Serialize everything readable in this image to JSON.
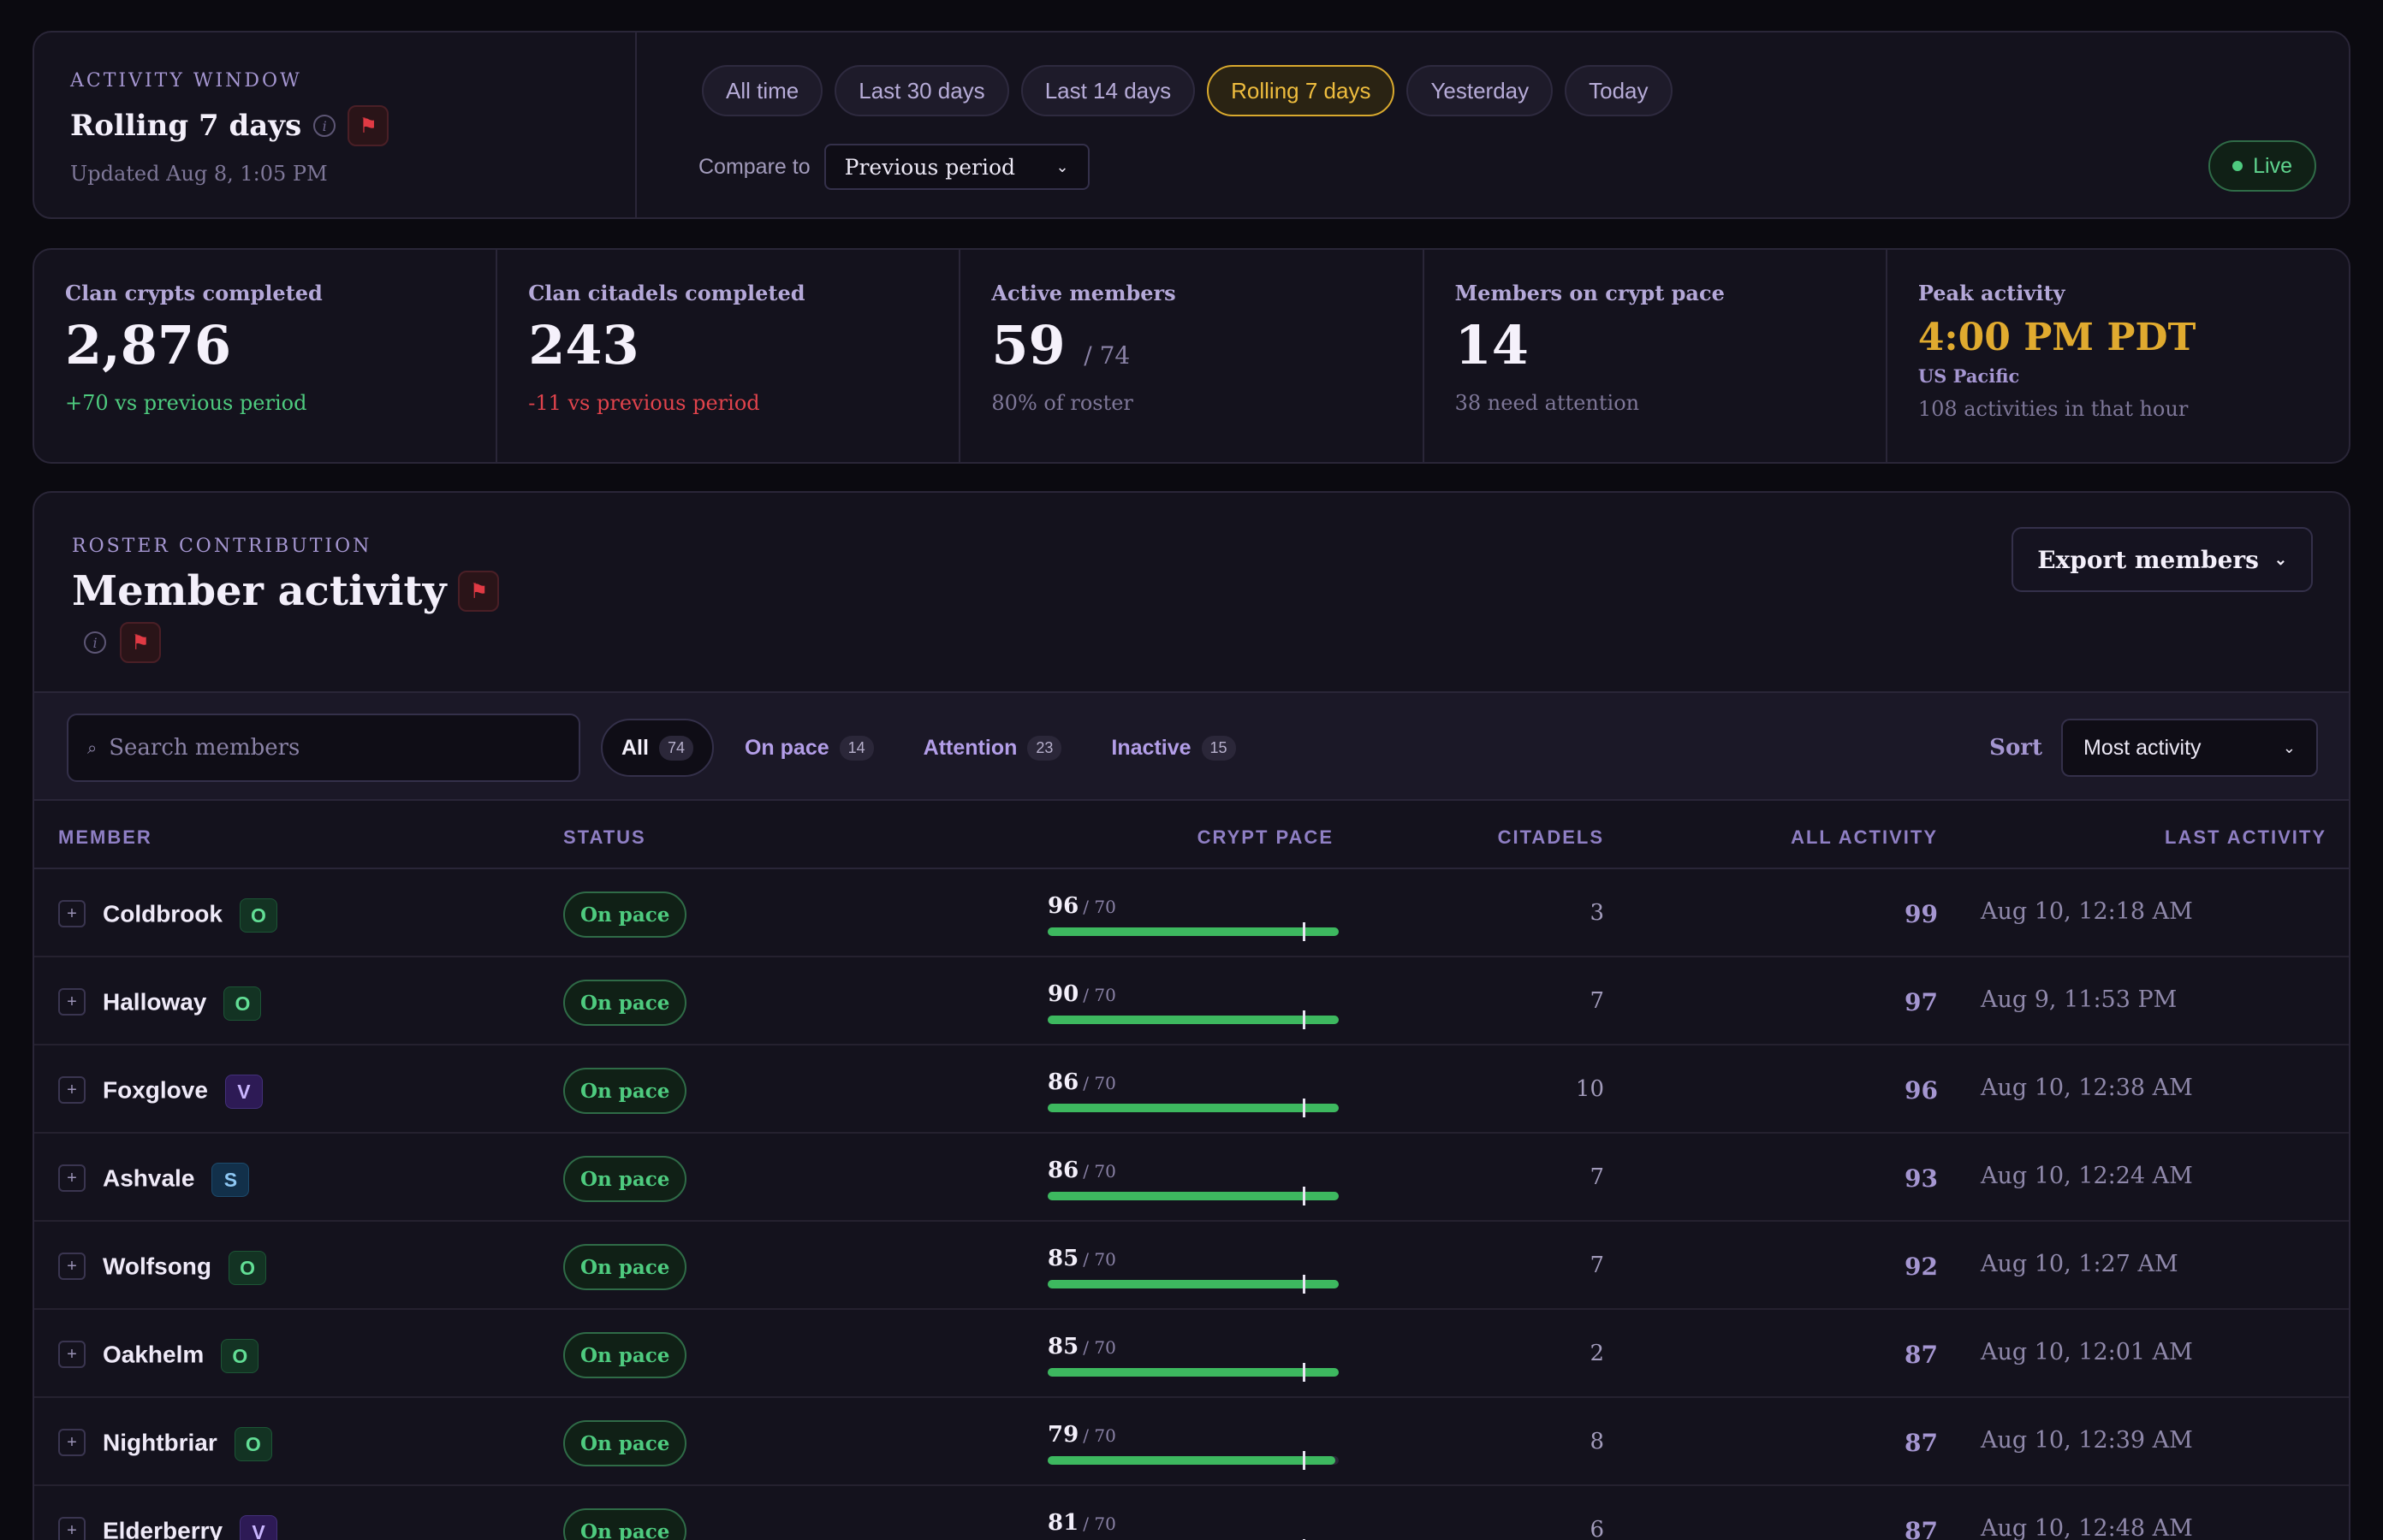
{
  "window": {
    "eyebrow": "ACTIVITY WINDOW",
    "title": "Rolling 7 days",
    "updated": "Updated Aug 8, 1:05 PM",
    "ranges": [
      "All time",
      "Last 30 days",
      "Last 14 days",
      "Rolling 7 days",
      "Yesterday",
      "Today"
    ],
    "active_range": "Rolling 7 days",
    "compare_label": "Compare to",
    "compare_value": "Previous period",
    "live_label": "Live"
  },
  "kpis": {
    "crypts": {
      "label": "Clan crypts completed",
      "value": "2,876",
      "sub": "+70 vs previous period"
    },
    "citadels": {
      "label": "Clan citadels completed",
      "value": "243",
      "sub": "-11 vs previous period"
    },
    "active": {
      "label": "Active members",
      "value": "59",
      "denom": "/ 74",
      "sub": "80% of roster"
    },
    "pace": {
      "label": "Members on crypt pace",
      "value": "14",
      "sub": "38 need attention"
    },
    "peak": {
      "label": "Peak activity",
      "value": "4:00 PM PDT",
      "tz": "US Pacific",
      "sub": "108 activities in that hour"
    }
  },
  "members": {
    "eyebrow": "ROSTER CONTRIBUTION",
    "title": "Member activity",
    "export_label": "Export members",
    "search_placeholder": "Search members",
    "chips": [
      {
        "label": "All",
        "count": "74"
      },
      {
        "label": "On pace",
        "count": "14"
      },
      {
        "label": "Attention",
        "count": "23"
      },
      {
        "label": "Inactive",
        "count": "15"
      }
    ],
    "sort_label": "Sort",
    "sort_value": "Most activity",
    "columns": {
      "member": "MEMBER",
      "status": "STATUS",
      "crypt_pace": "CRYPT PACE",
      "citadels": "CITADELS",
      "all_activity": "ALL ACTIVITY",
      "last_activity": "LAST ACTIVITY"
    },
    "pace_target": 70,
    "pace_max": 80,
    "rows": [
      {
        "name": "Coldbrook",
        "cls": "O",
        "status": "On pace",
        "pace": "96",
        "target": "/ 70",
        "citadels": "3",
        "activity": "99",
        "last": "Aug 10, 12:18 AM"
      },
      {
        "name": "Halloway",
        "cls": "O",
        "status": "On pace",
        "pace": "90",
        "target": "/ 70",
        "citadels": "7",
        "activity": "97",
        "last": "Aug 9, 11:53 PM"
      },
      {
        "name": "Foxglove",
        "cls": "V",
        "status": "On pace",
        "pace": "86",
        "target": "/ 70",
        "citadels": "10",
        "activity": "96",
        "last": "Aug 10, 12:38 AM"
      },
      {
        "name": "Ashvale",
        "cls": "S",
        "status": "On pace",
        "pace": "86",
        "target": "/ 70",
        "citadels": "7",
        "activity": "93",
        "last": "Aug 10, 12:24 AM"
      },
      {
        "name": "Wolfsong",
        "cls": "O",
        "status": "On pace",
        "pace": "85",
        "target": "/ 70",
        "citadels": "7",
        "activity": "92",
        "last": "Aug 10, 1:27 AM"
      },
      {
        "name": "Oakhelm",
        "cls": "O",
        "status": "On pace",
        "pace": "85",
        "target": "/ 70",
        "citadels": "2",
        "activity": "87",
        "last": "Aug 10, 12:01 AM"
      },
      {
        "name": "Nightbriar",
        "cls": "O",
        "status": "On pace",
        "pace": "79",
        "target": "/ 70",
        "citadels": "8",
        "activity": "87",
        "last": "Aug 10, 12:39 AM"
      },
      {
        "name": "Elderberry",
        "cls": "V",
        "status": "On pace",
        "pace": "81",
        "target": "/ 70",
        "citadels": "6",
        "activity": "87",
        "last": "Aug 10, 12:48 AM"
      }
    ]
  }
}
